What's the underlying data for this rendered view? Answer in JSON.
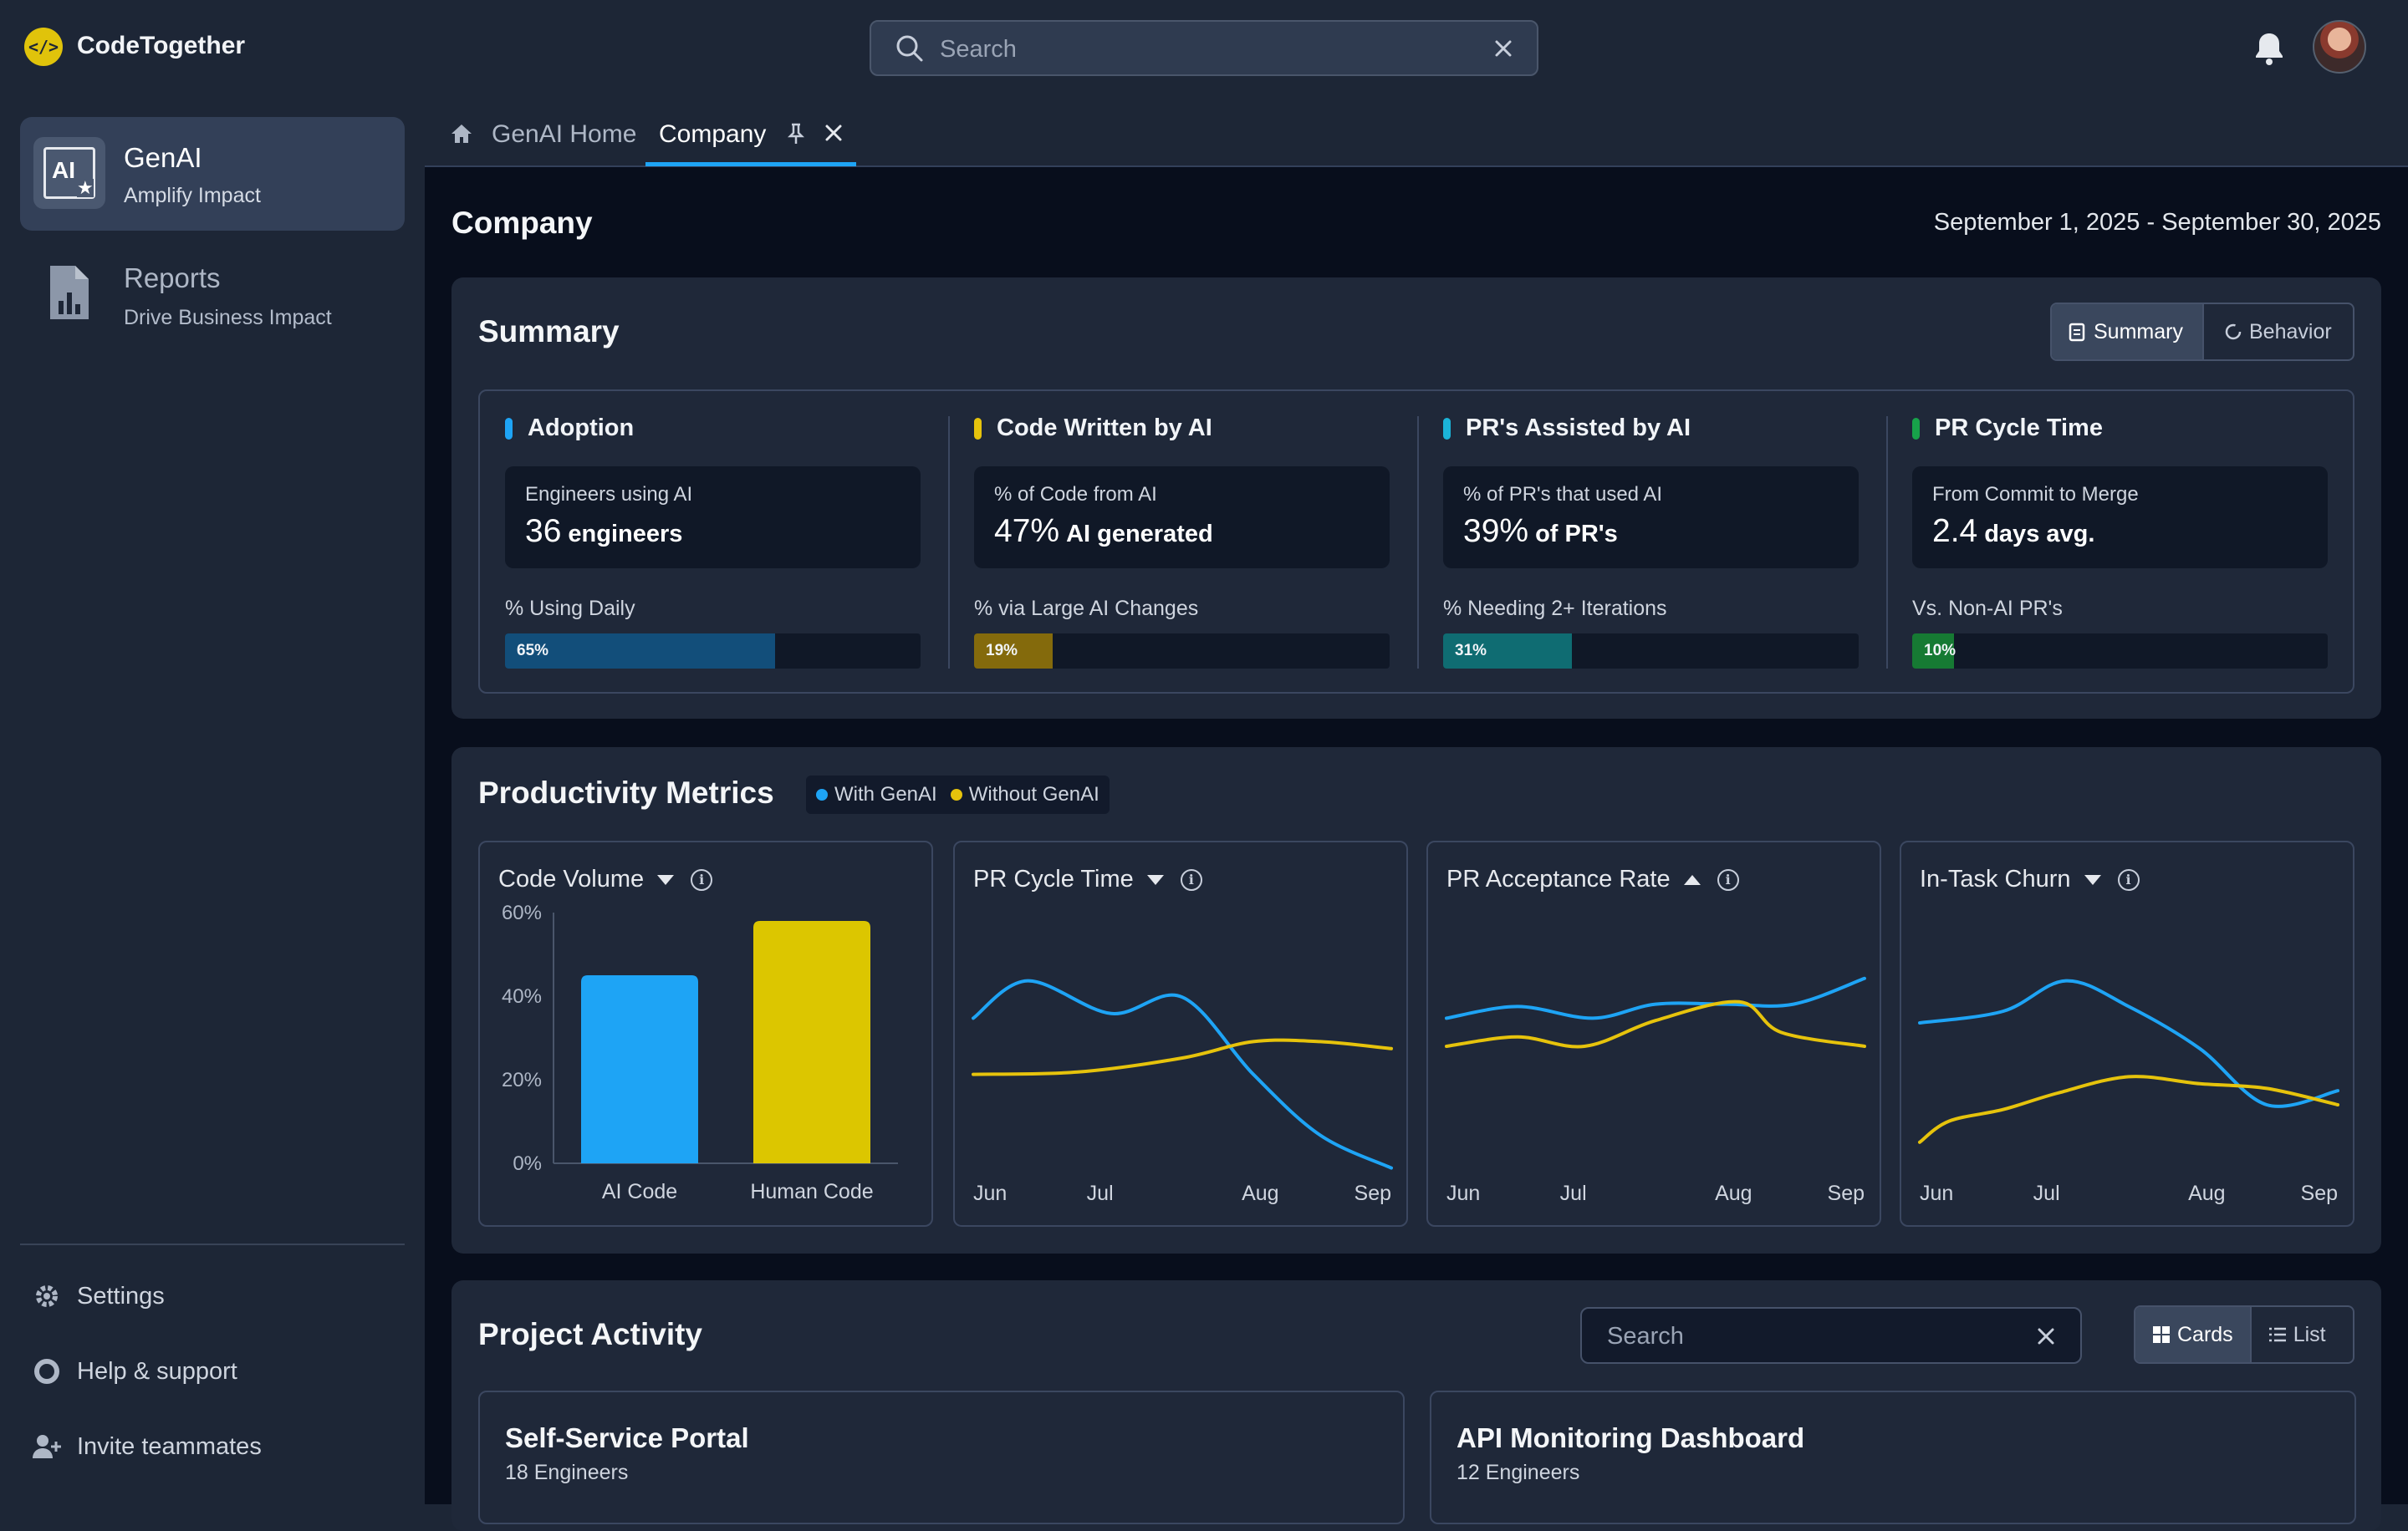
{
  "app": {
    "title": "CodeTogether",
    "logo_glyph": "</>"
  },
  "topbar": {
    "search_placeholder": "Search"
  },
  "sidebar": {
    "items": [
      {
        "title": "GenAI",
        "subtitle": "Amplify Impact",
        "icon_text": "AI"
      },
      {
        "title": "Reports",
        "subtitle": "Drive Business Impact"
      }
    ],
    "footer": [
      {
        "label": "Settings",
        "icon": "gear-icon"
      },
      {
        "label": "Help & support",
        "icon": "lifebuoy-icon"
      },
      {
        "label": "Invite teammates",
        "icon": "add-user-icon"
      }
    ]
  },
  "tabs": {
    "home": "GenAI Home",
    "active": "Company"
  },
  "page": {
    "title": "Company",
    "date_range": "September 1, 2025 - September 30, 2025"
  },
  "summary": {
    "title": "Summary",
    "toggle": {
      "summary": "Summary",
      "behavior": "Behavior"
    },
    "kpis": [
      {
        "title": "Adoption",
        "color": "#1ea4f5",
        "card_label": "Engineers using AI",
        "value": "36",
        "unit": "engineers",
        "sub_label": "% Using Daily",
        "bar_pct": 65,
        "bar_text": "65%",
        "bar_color": "#124e7a"
      },
      {
        "title": "Code Written by AI",
        "color": "#e6c30c",
        "card_label": "% of Code from AI",
        "value": "47%",
        "unit": "AI generated",
        "sub_label": "% via Large AI Changes",
        "bar_pct": 19,
        "bar_text": "19%",
        "bar_color": "#846a0c"
      },
      {
        "title": "PR's Assisted by AI",
        "color": "#1bb4d8",
        "card_label": "% of PR's that used AI",
        "value": "39%",
        "unit": "of PR's",
        "sub_label": "% Needing 2+ Iterations",
        "bar_pct": 31,
        "bar_text": "31%",
        "bar_color": "#0f6c72"
      },
      {
        "title": "PR Cycle Time",
        "color": "#17a34a",
        "card_label": "From Commit to Merge",
        "value": "2.4",
        "unit": "days avg.",
        "sub_label": "Vs. Non-AI PR's",
        "bar_pct": 10,
        "bar_text": "10%",
        "bar_color": "#167a33"
      }
    ]
  },
  "productivity": {
    "title": "Productivity Metrics",
    "legend": [
      {
        "label": "With GenAI",
        "color": "#1ea4f5"
      },
      {
        "label": "Without GenAI",
        "color": "#e6c30c"
      }
    ],
    "charts": [
      {
        "title": "Code Volume",
        "trend": "down"
      },
      {
        "title": "PR Cycle Time",
        "trend": "down"
      },
      {
        "title": "PR Acceptance Rate",
        "trend": "up"
      },
      {
        "title": "In-Task Churn",
        "trend": "down"
      }
    ]
  },
  "chart_data": [
    {
      "type": "bar",
      "title": "Code Volume",
      "categories": [
        "AI Code",
        "Human Code"
      ],
      "values": [
        45,
        58
      ],
      "colors": [
        "#1ea4f5",
        "#dcc600"
      ],
      "yticks": [
        "0%",
        "20%",
        "40%",
        "60%"
      ],
      "ylim": [
        0,
        60
      ]
    },
    {
      "type": "line",
      "title": "PR Cycle Time",
      "x": [
        "Jun",
        "Jul",
        "Aug",
        "Sep"
      ],
      "series": [
        {
          "name": "With GenAI",
          "values": [
            [
              0,
              0.57
            ],
            [
              0.13,
              0.73
            ],
            [
              0.33,
              0.59
            ],
            [
              0.5,
              0.66
            ],
            [
              0.67,
              0.33
            ],
            [
              0.83,
              0.07
            ],
            [
              1,
              -0.07
            ]
          ]
        },
        {
          "name": "Without GenAI",
          "values": [
            [
              0,
              0.33
            ],
            [
              0.25,
              0.34
            ],
            [
              0.5,
              0.4
            ],
            [
              0.67,
              0.47
            ],
            [
              0.83,
              0.47
            ],
            [
              1,
              0.44
            ]
          ]
        }
      ]
    },
    {
      "type": "line",
      "title": "PR Acceptance Rate",
      "x": [
        "Jun",
        "Jul",
        "Aug",
        "Sep"
      ],
      "series": [
        {
          "name": "With GenAI",
          "values": [
            [
              0,
              0.57
            ],
            [
              0.17,
              0.62
            ],
            [
              0.35,
              0.57
            ],
            [
              0.5,
              0.63
            ],
            [
              0.67,
              0.63
            ],
            [
              0.83,
              0.63
            ],
            [
              1,
              0.74
            ]
          ]
        },
        {
          "name": "Without GenAI",
          "values": [
            [
              0,
              0.45
            ],
            [
              0.17,
              0.49
            ],
            [
              0.33,
              0.45
            ],
            [
              0.5,
              0.56
            ],
            [
              0.7,
              0.64
            ],
            [
              0.8,
              0.51
            ],
            [
              1,
              0.45
            ]
          ]
        }
      ]
    },
    {
      "type": "line",
      "title": "In-Task Churn",
      "x": [
        "Jun",
        "Jul",
        "Aug",
        "Sep"
      ],
      "series": [
        {
          "name": "With GenAI",
          "values": [
            [
              0,
              0.55
            ],
            [
              0.2,
              0.6
            ],
            [
              0.35,
              0.73
            ],
            [
              0.5,
              0.62
            ],
            [
              0.67,
              0.44
            ],
            [
              0.83,
              0.2
            ],
            [
              1,
              0.26
            ]
          ]
        },
        {
          "name": "Without GenAI",
          "values": [
            [
              0,
              0.04
            ],
            [
              0.07,
              0.13
            ],
            [
              0.2,
              0.18
            ],
            [
              0.33,
              0.25
            ],
            [
              0.5,
              0.32
            ],
            [
              0.67,
              0.29
            ],
            [
              0.83,
              0.27
            ],
            [
              1,
              0.2
            ]
          ]
        }
      ]
    }
  ],
  "projects": {
    "title": "Project Activity",
    "search_placeholder": "Search",
    "view_toggle": {
      "cards": "Cards",
      "list": "List"
    },
    "items": [
      {
        "name": "Self-Service Portal",
        "engineers": "18 Engineers"
      },
      {
        "name": "API Monitoring Dashboard",
        "engineers": "12 Engineers"
      }
    ]
  }
}
